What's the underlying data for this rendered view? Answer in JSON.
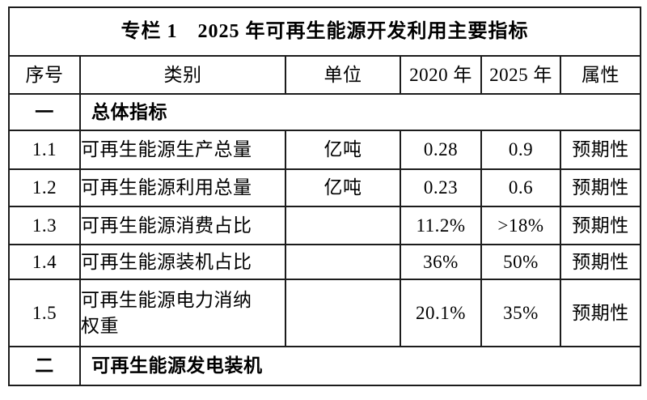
{
  "table": {
    "title": "专栏 1　2025 年可再生能源开发利用主要指标",
    "headers": [
      "序号",
      "类别",
      "单位",
      "2020 年",
      "2025 年",
      "属性"
    ],
    "rows": [
      {
        "type": "section",
        "no": "一",
        "label": "总体指标"
      },
      {
        "type": "data",
        "no": "1.1",
        "category": "可再生能源生产总量",
        "unit": "亿吨",
        "y2020": "0.28",
        "y2025": "0.9",
        "attribute": "预期性"
      },
      {
        "type": "data",
        "no": "1.2",
        "category": "可再生能源利用总量",
        "unit": "亿吨",
        "y2020": "0.23",
        "y2025": "0.6",
        "attribute": "预期性"
      },
      {
        "type": "data",
        "no": "1.3",
        "category": "可再生能源消费占比",
        "unit": "",
        "y2020": "11.2%",
        "y2025": ">18%",
        "attribute": "预期性"
      },
      {
        "type": "data",
        "no": "1.4",
        "category": "可再生能源装机占比",
        "unit": "",
        "y2020": "36%",
        "y2025": "50%",
        "attribute": "预期性"
      },
      {
        "type": "data",
        "no": "1.5",
        "category": "可再生能源电力消纳\n权重",
        "unit": "",
        "y2020": "20.1%",
        "y2025": "35%",
        "attribute": "预期性"
      },
      {
        "type": "section",
        "no": "二",
        "label": "可再生能源发电装机"
      }
    ]
  }
}
